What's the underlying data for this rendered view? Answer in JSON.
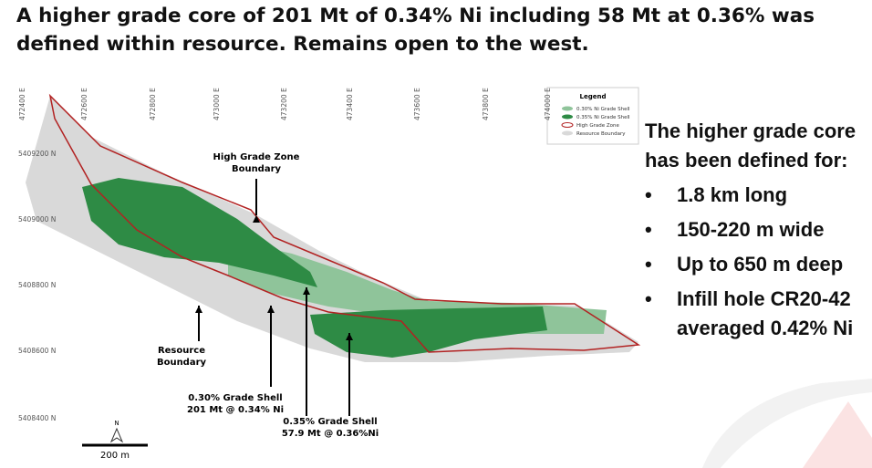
{
  "title": "A higher grade core of 201 Mt of 0.34% Ni including 58 Mt at 0.36% was defined within resource.  Remains open to the west.",
  "map": {
    "eastings": [
      "472400 E",
      "472600 E",
      "472800 E",
      "473000 E",
      "473200 E",
      "473400 E",
      "473600 E",
      "473800 E",
      "474000 E"
    ],
    "northings": [
      "5409200 N",
      "5409000 N",
      "5408800 N",
      "5408600 N",
      "5408400 N"
    ],
    "legend": {
      "title": "Legend",
      "items": [
        "0.30% Ni Grade Shell",
        "0.35% Ni Grade Shell",
        "High Grade Zone",
        "Resource Boundary"
      ]
    },
    "annotations": [
      {
        "lines": [
          "High Grade Zone",
          "Boundary"
        ]
      },
      {
        "lines": [
          "Resource",
          "Boundary"
        ]
      },
      {
        "lines": [
          "0.30% Grade Shell",
          "201 Mt @ 0.34% Ni"
        ]
      },
      {
        "lines": [
          "0.35% Grade Shell",
          "57.9 Mt @ 0.36%Ni"
        ]
      }
    ],
    "north": "N",
    "scale": "200 m"
  },
  "summary": {
    "heading": "The higher grade core has been defined for:",
    "bullets": [
      "1.8 km long",
      "150-220 m wide",
      "Up to 650 m deep",
      "Infill hole CR20-42 averaged 0.42% Ni"
    ]
  }
}
